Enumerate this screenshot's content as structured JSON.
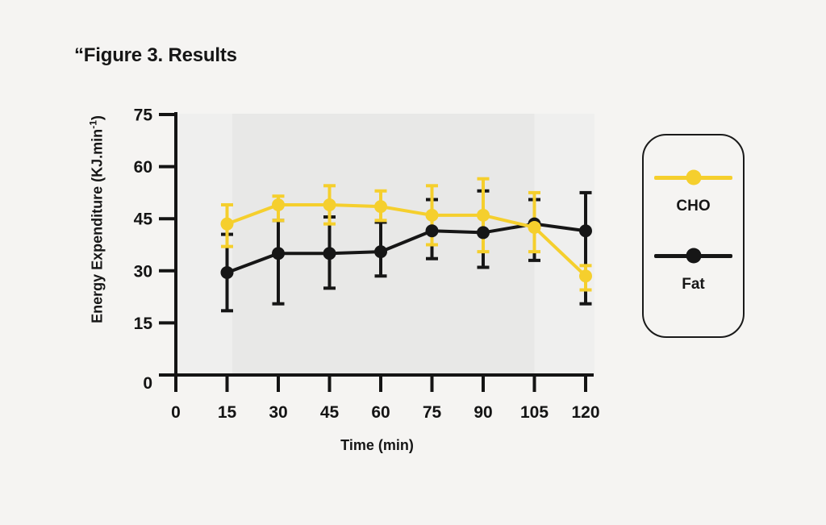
{
  "page": {
    "background": "#f5f4f2",
    "title": "“Figure 3. Results"
  },
  "chart_data": {
    "type": "line",
    "title": "“Figure 3. Results",
    "xlabel": "Time (min)",
    "ylabel": "Energy Expenditure (KJ.min⁻¹)",
    "ylabel_parts": {
      "main": "Energy Expenditure (KJ.min",
      "sup": "-1",
      "end": ")"
    },
    "x": [
      15,
      30,
      45,
      60,
      75,
      90,
      105,
      120
    ],
    "x_ticks": [
      0,
      15,
      30,
      45,
      60,
      75,
      90,
      105,
      120
    ],
    "y_ticks": [
      0,
      15,
      30,
      45,
      60,
      75
    ],
    "xlim": [
      0,
      120
    ],
    "ylim": [
      0,
      75
    ],
    "grid": false,
    "error_bars": true,
    "axis_color": "#141414",
    "plot_background": "#efefee",
    "shaded_region": {
      "x_start": 16.5,
      "x_end": 105,
      "color": "#e8e8e7"
    },
    "legend_position": "right",
    "series": [
      {
        "name": "CHO",
        "color": "#f5cf2d",
        "values": [
          43.5,
          49,
          49,
          48.5,
          46,
          46,
          42.5,
          28.5
        ],
        "err_up": [
          5.5,
          2.5,
          5.5,
          4.5,
          8.5,
          10.5,
          10,
          3
        ],
        "err_down": [
          6.5,
          4.5,
          5.5,
          4,
          8.5,
          10.5,
          7,
          4
        ]
      },
      {
        "name": "Fat",
        "color": "#161616",
        "values": [
          29.5,
          35,
          35,
          35.5,
          41.5,
          41,
          43.5,
          41.5
        ],
        "err_up": [
          11,
          9.5,
          10.5,
          8.5,
          9,
          12,
          7,
          11
        ],
        "err_down": [
          11,
          14.5,
          10,
          7,
          8,
          10,
          10.5,
          21
        ]
      }
    ]
  },
  "legend": {
    "items": [
      {
        "label": "CHO",
        "color": "#f5cf2d"
      },
      {
        "label": "Fat",
        "color": "#161616"
      }
    ]
  }
}
